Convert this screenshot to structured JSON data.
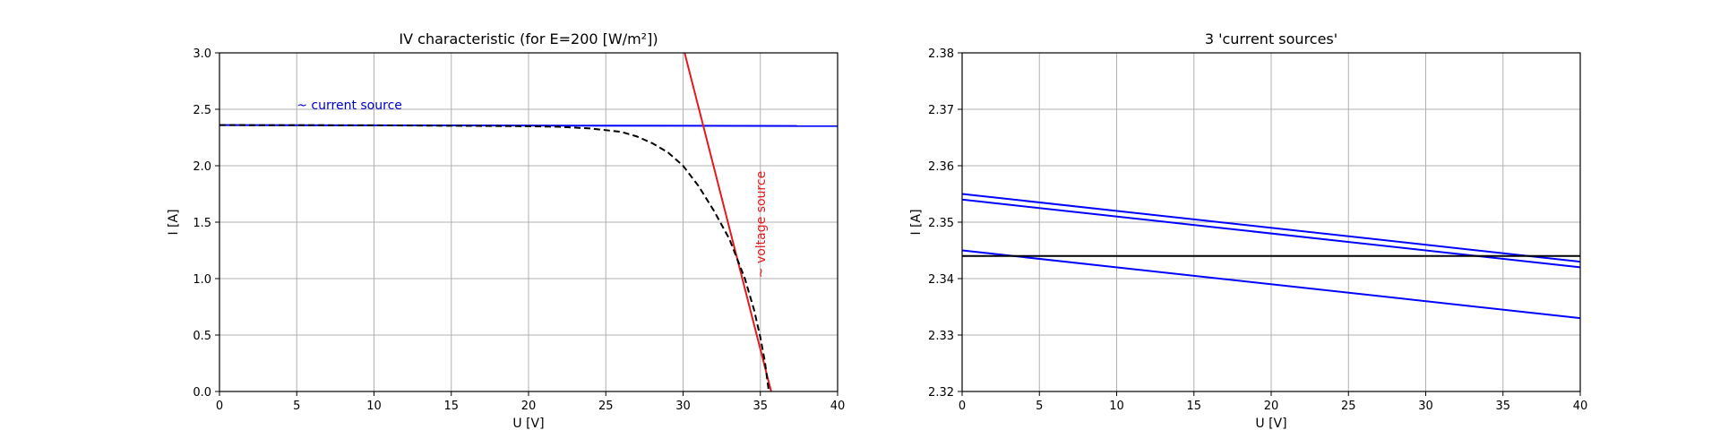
{
  "chart_data": [
    {
      "type": "line",
      "title": "IV characteristic (for E=200 [W/m²])",
      "xlabel": "U [V]",
      "ylabel": "I [A]",
      "xlim": [
        0,
        40
      ],
      "ylim": [
        0,
        3.0
      ],
      "xticks": [
        "0",
        "5",
        "10",
        "15",
        "20",
        "25",
        "30",
        "35",
        "40"
      ],
      "yticks": [
        "0.0",
        "0.5",
        "1.0",
        "1.5",
        "2.0",
        "2.5",
        "3.0"
      ],
      "grid": true,
      "annotations": [
        {
          "text": "~ current source",
          "x": 5,
          "y": 2.5,
          "color": "#0000cc",
          "rotation": 0
        },
        {
          "text": "~ voltage source",
          "x": 35.3,
          "y": 1.48,
          "color": "#e41a1c",
          "rotation": -90
        }
      ],
      "series": [
        {
          "color": "#0000ff",
          "style": "solid",
          "x": [
            0,
            40
          ],
          "y": [
            2.36,
            2.352
          ]
        },
        {
          "color": "#e41a1c",
          "style": "solid",
          "x": [
            30.1,
            35.7
          ],
          "y": [
            3.0,
            0.0
          ]
        },
        {
          "color": "#000000",
          "style": "dashed",
          "x": [
            0,
            10,
            20,
            22,
            24,
            26,
            27,
            28,
            29,
            30,
            31,
            32,
            33,
            34,
            34.6,
            35,
            35.3,
            35.45,
            35.55
          ],
          "y": [
            2.36,
            2.358,
            2.35,
            2.345,
            2.33,
            2.3,
            2.26,
            2.2,
            2.12,
            2.0,
            1.82,
            1.6,
            1.35,
            1.0,
            0.72,
            0.48,
            0.26,
            0.1,
            0.0
          ]
        }
      ]
    },
    {
      "type": "line",
      "title": "3 'current sources'",
      "xlabel": "U [V]",
      "ylabel": "I [A]",
      "xlim": [
        0,
        40
      ],
      "ylim": [
        2.32,
        2.38
      ],
      "xticks": [
        "0",
        "5",
        "10",
        "15",
        "20",
        "25",
        "30",
        "35",
        "40"
      ],
      "yticks": [
        "2.32",
        "2.33",
        "2.34",
        "2.35",
        "2.36",
        "2.37",
        "2.38"
      ],
      "grid": true,
      "annotations": [],
      "series": [
        {
          "color": "#0000ff",
          "style": "solid",
          "x": [
            0,
            40
          ],
          "y": [
            2.355,
            2.343
          ]
        },
        {
          "color": "#0000ff",
          "style": "solid",
          "x": [
            0,
            40
          ],
          "y": [
            2.354,
            2.342
          ]
        },
        {
          "color": "#0000ff",
          "style": "solid",
          "x": [
            0,
            40
          ],
          "y": [
            2.345,
            2.333
          ]
        },
        {
          "color": "#000000",
          "style": "solid",
          "x": [
            0,
            40
          ],
          "y": [
            2.344,
            2.344
          ]
        }
      ]
    }
  ]
}
